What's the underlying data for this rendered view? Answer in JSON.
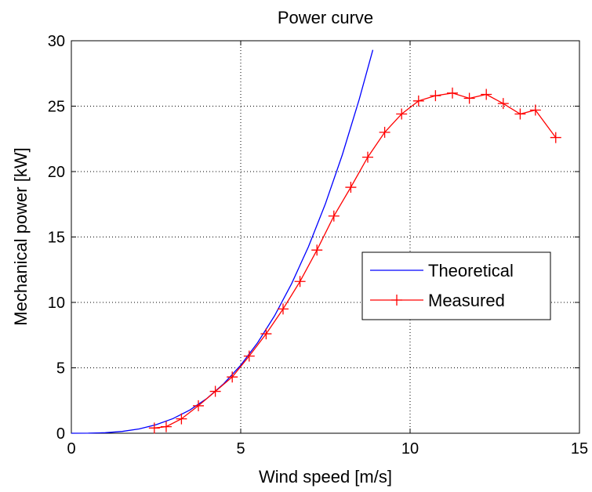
{
  "chart_data": {
    "type": "line",
    "title": "Power curve",
    "xlabel": "Wind speed [m/s]",
    "ylabel": "Mechanical power [kW]",
    "xlim": [
      0,
      15
    ],
    "ylim": [
      0,
      30
    ],
    "xticks": [
      0,
      5,
      10,
      15
    ],
    "yticks": [
      0,
      5,
      10,
      15,
      20,
      25,
      30
    ],
    "grid": true,
    "legend_position": "center-right",
    "series": [
      {
        "name": "Theoretical",
        "color": "#0000ff",
        "marker": "none",
        "x": [
          0,
          0.5,
          1.0,
          1.5,
          2.0,
          2.5,
          3.0,
          3.5,
          4.0,
          4.5,
          5.0,
          5.5,
          6.0,
          6.5,
          7.0,
          7.5,
          8.0,
          8.5,
          8.9
        ],
        "y": [
          0,
          0.005,
          0.04,
          0.14,
          0.33,
          0.65,
          1.12,
          1.78,
          2.66,
          3.79,
          5.2,
          6.92,
          8.98,
          11.42,
          14.26,
          17.54,
          21.29,
          25.53,
          29.3
        ]
      },
      {
        "name": "Measured",
        "color": "#ff0000",
        "marker": "+",
        "x": [
          2.45,
          2.8,
          3.25,
          3.75,
          4.25,
          4.75,
          5.25,
          5.75,
          6.25,
          6.75,
          7.25,
          7.75,
          8.25,
          8.75,
          9.25,
          9.75,
          10.25,
          10.75,
          11.25,
          11.75,
          12.25,
          12.75,
          13.25,
          13.7,
          14.3
        ],
        "y": [
          0.4,
          0.5,
          1.1,
          2.1,
          3.2,
          4.3,
          5.9,
          7.6,
          9.5,
          11.6,
          14.0,
          16.6,
          18.8,
          21.1,
          23.0,
          24.4,
          25.4,
          25.8,
          26.0,
          25.6,
          25.9,
          25.2,
          24.4,
          24.7,
          22.6
        ]
      }
    ]
  }
}
